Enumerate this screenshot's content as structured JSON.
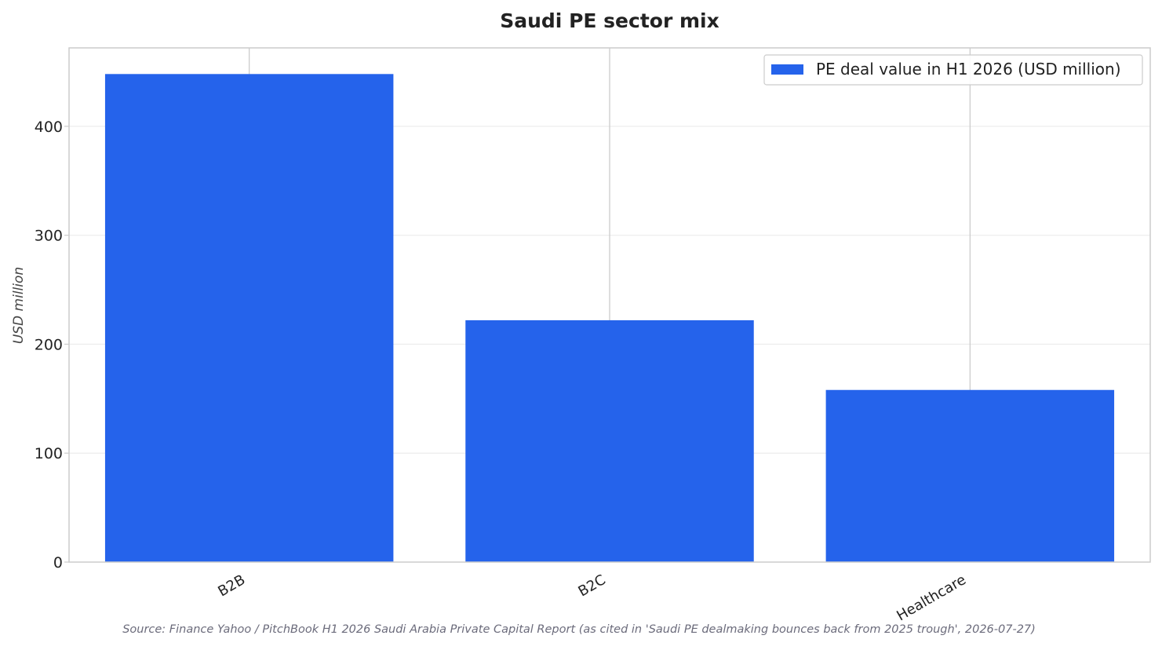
{
  "chart_data": {
    "type": "bar",
    "title": "Saudi PE sector mix",
    "categories": [
      "B2B",
      "B2C",
      "Healthcare"
    ],
    "series": [
      {
        "name": "PE deal value in H1 2026 (USD million)",
        "values": [
          448,
          222,
          158
        ]
      }
    ],
    "xlabel": "",
    "ylabel": "USD million",
    "ylim": [
      0,
      472
    ],
    "yticks": [
      0,
      100,
      200,
      300,
      400
    ],
    "grid": true,
    "legend_position": "top-right",
    "colors": {
      "bar": "#2563eb",
      "grid": "#ebebeb",
      "frame": "#cccccc",
      "text": "#222222",
      "source": "#6b6b7b"
    },
    "source": "Source: Finance Yahoo / PitchBook H1 2026 Saudi Arabia Private Capital Report (as cited in 'Saudi PE dealmaking bounces back from 2025 trough', 2026-07-27)"
  }
}
